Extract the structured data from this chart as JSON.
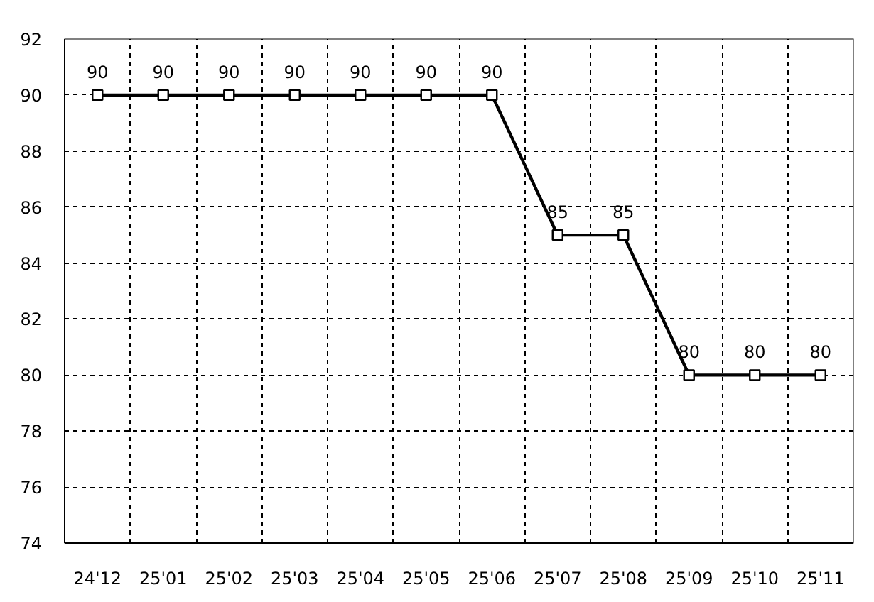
{
  "chart_data": {
    "type": "line",
    "categories": [
      "24'12",
      "25'01",
      "25'02",
      "25'03",
      "25'04",
      "25'05",
      "25'06",
      "25'07",
      "25'08",
      "25'09",
      "25'10",
      "25'11"
    ],
    "series": [
      {
        "color": "#000000",
        "values": [
          90,
          90,
          90,
          90,
          90,
          90,
          90,
          85,
          85,
          80,
          80,
          80
        ]
      }
    ],
    "ylim": [
      74,
      92
    ],
    "yticks": [
      74,
      76,
      78,
      80,
      82,
      84,
      86,
      88,
      90,
      92
    ],
    "grid": true,
    "data_labels": true,
    "marker": "square",
    "line_style": "solid"
  }
}
